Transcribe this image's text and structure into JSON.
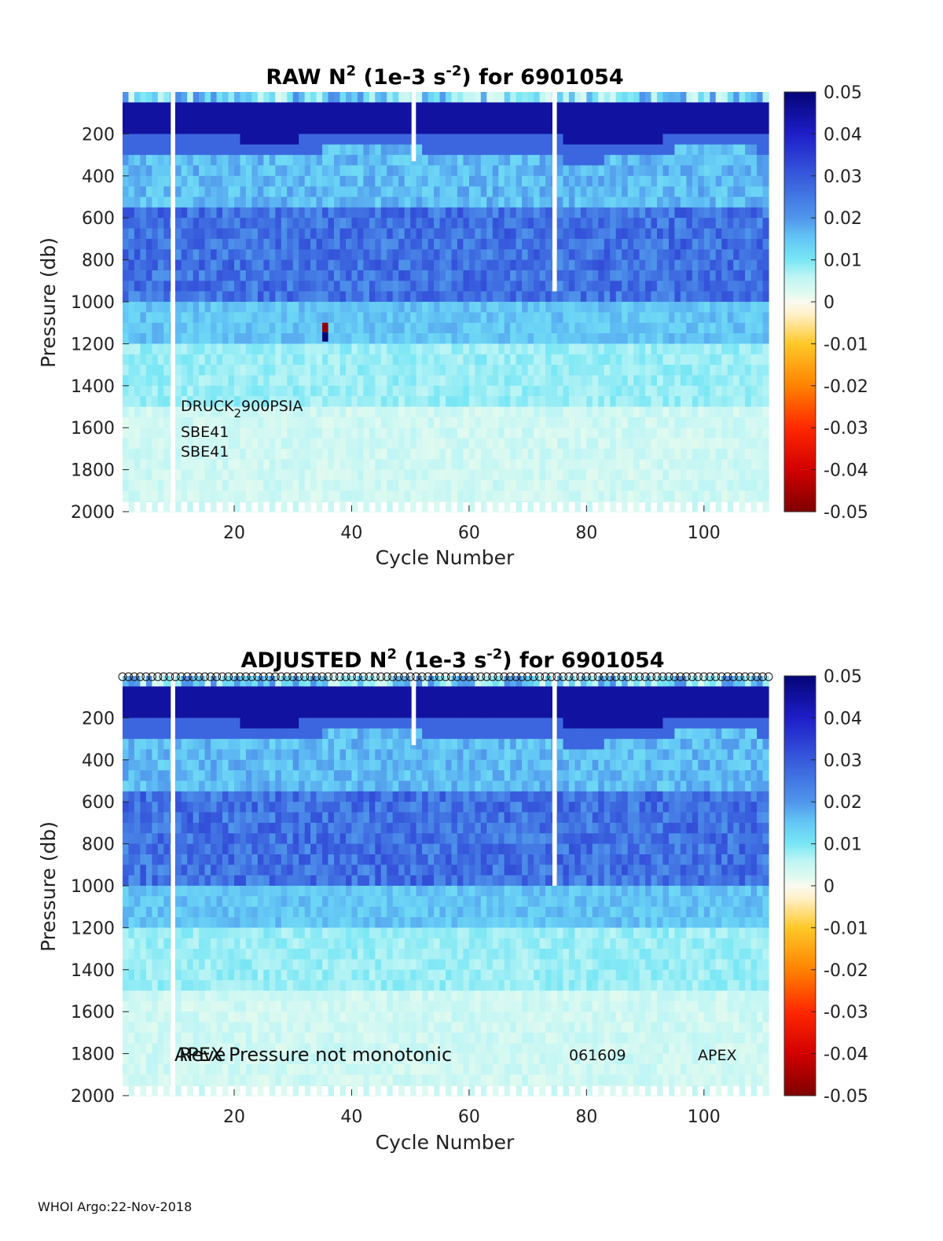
{
  "footer": "WHOI Argo:22-Nov-2018",
  "chart_data": [
    {
      "type": "heatmap",
      "title": {
        "prefix": "RAW N",
        "sup1": "2",
        "mid": " (1e-3 s",
        "sup2": "-2",
        "suffix": ") for 6901054"
      },
      "xlabel": "Cycle Number",
      "ylabel": "Pressure (db)",
      "xlim": [
        1,
        111
      ],
      "ylim": [
        0,
        2000
      ],
      "y_reversed": true,
      "xticks": [
        20,
        40,
        60,
        80,
        100
      ],
      "yticks": [
        200,
        400,
        600,
        800,
        1000,
        1200,
        1400,
        1600,
        1800,
        2000
      ],
      "colorbar": {
        "min": -0.05,
        "max": 0.05,
        "ticks": [
          "0.05",
          "0.04",
          "0.03",
          "0.02",
          "0.01",
          "0",
          "-0.01",
          "-0.02",
          "-0.03",
          "-0.04",
          "-0.05"
        ],
        "colormap": "blue-white-red"
      },
      "missing_profiles": [
        {
          "cycle": 9,
          "pmax": 2000
        },
        {
          "cycle": 50,
          "pmax": 330
        },
        {
          "cycle": 74,
          "pmax": 950
        }
      ],
      "outlier": {
        "cycle": 35,
        "p_top": 1100,
        "p_bottom": 1190
      },
      "annotations": {
        "line1_a": "DRUCK",
        "line1_sub": "2",
        "line1_b": "900PSIA",
        "line2": "SBE41",
        "line3": "SBE41"
      },
      "profile_markers": false
    },
    {
      "type": "heatmap",
      "title": {
        "prefix": "ADJUSTED N",
        "sup1": "2",
        "mid": " (1e-3 s",
        "sup2": "-2",
        "suffix": ") for 6901054"
      },
      "xlabel": "Cycle Number",
      "ylabel": "Pressure (db)",
      "xlim": [
        1,
        111
      ],
      "ylim": [
        0,
        2000
      ],
      "y_reversed": true,
      "xticks": [
        20,
        40,
        60,
        80,
        100
      ],
      "yticks": [
        200,
        400,
        600,
        800,
        1000,
        1200,
        1400,
        1600,
        1800,
        2000
      ],
      "colorbar": {
        "min": -0.05,
        "max": 0.05,
        "ticks": [
          "0.05",
          "0.04",
          "0.03",
          "0.02",
          "0.01",
          "0",
          "-0.01",
          "-0.02",
          "-0.03",
          "-0.04",
          "-0.05"
        ],
        "colormap": "blue-white-red"
      },
      "missing_profiles": [
        {
          "cycle": 9,
          "pmax": 2000
        },
        {
          "cycle": 50,
          "pmax": 330
        },
        {
          "cycle": 74,
          "pmax": 1000
        }
      ],
      "annotations": {
        "overlap_a": "APEX",
        "overlap_b": "Reve",
        "note": "Pressure not monotonic",
        "serial": "061609",
        "platform": "APEX"
      },
      "profile_markers": true
    }
  ]
}
